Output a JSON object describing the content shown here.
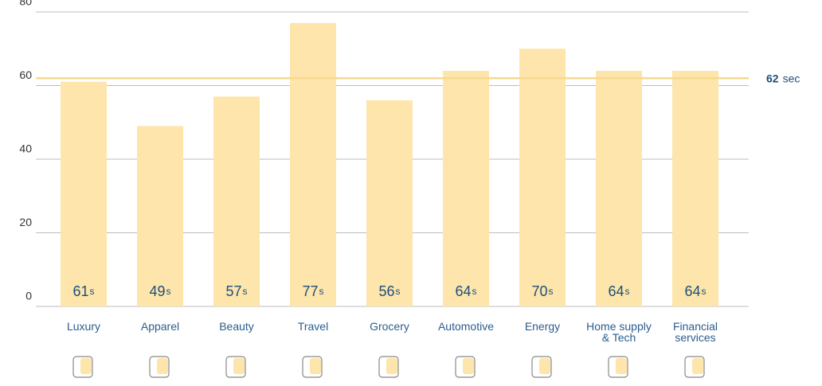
{
  "chart_data": {
    "type": "bar",
    "categories": [
      "Luxury",
      "Apparel",
      "Beauty",
      "Travel",
      "Grocery",
      "Automotive",
      "Energy",
      "Home supply\n& Tech",
      "Financial\nservices"
    ],
    "values": [
      61,
      49,
      57,
      77,
      56,
      64,
      70,
      64,
      64
    ],
    "value_unit": "s",
    "color": "#fde5ab",
    "ylim": [
      0,
      80
    ],
    "yticks": [
      0,
      20,
      40,
      60,
      80
    ],
    "grid": true,
    "reference": {
      "value": 62,
      "unit": "sec",
      "color": "#f7d98c"
    }
  }
}
